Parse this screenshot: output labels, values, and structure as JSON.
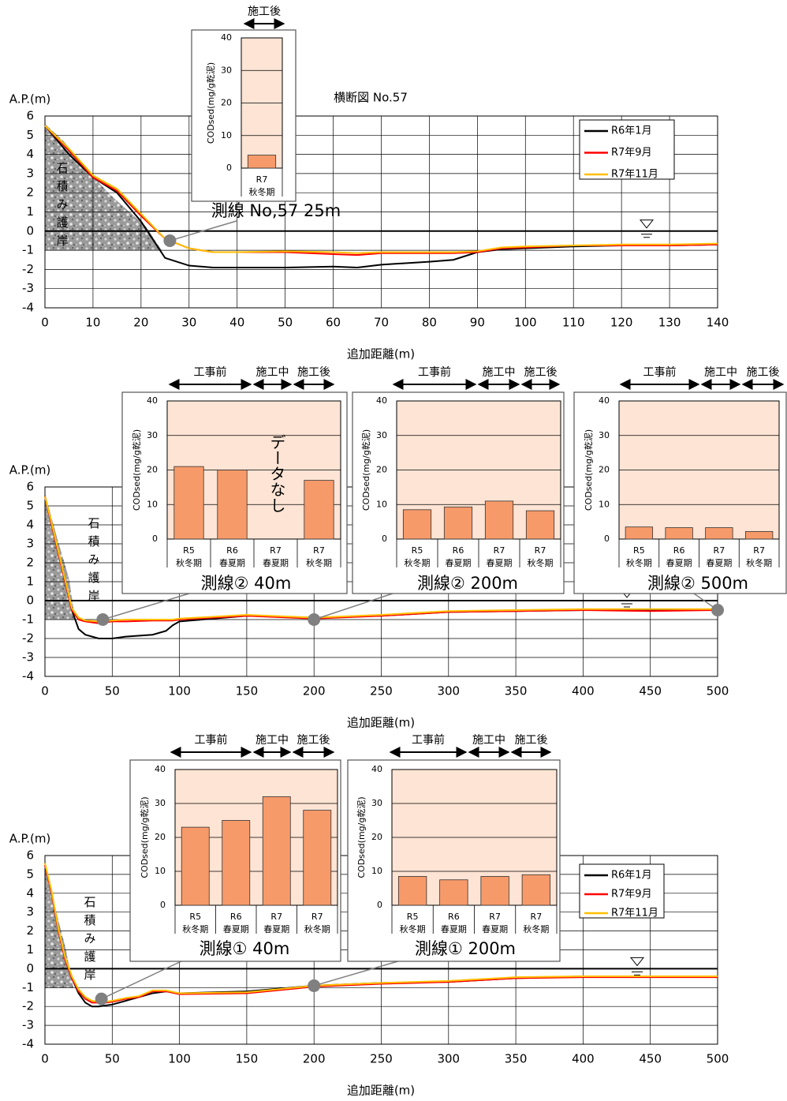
{
  "chart_data": [
    {
      "type": "line",
      "title": "横断図 No.57",
      "y_label": "A.P.(m)",
      "x_label": "追加距離(m)",
      "annotation": "石積み護岸",
      "x": [
        0,
        5,
        10,
        15,
        20,
        25,
        30,
        35,
        40,
        50,
        60,
        65,
        70,
        80,
        85,
        90,
        95,
        100,
        110,
        120,
        130,
        140
      ],
      "series": [
        {
          "name": "R6年1月",
          "color": "#000000",
          "values": [
            5.5,
            4,
            2.8,
            2,
            0.5,
            -1.4,
            -1.8,
            -1.9,
            -1.9,
            -1.9,
            -1.85,
            -1.9,
            -1.75,
            -1.6,
            -1.5,
            -1.1,
            -0.95,
            -0.9,
            -0.8,
            -0.75,
            -0.75,
            -0.7
          ]
        },
        {
          "name": "R7年9月",
          "color": "#ff0000",
          "values": [
            5.5,
            4.2,
            2.8,
            2.1,
            0.8,
            -0.4,
            -0.9,
            -1.1,
            -1.1,
            -1.1,
            -1.2,
            -1.25,
            -1.15,
            -1.15,
            -1.15,
            -1.1,
            -0.9,
            -0.85,
            -0.75,
            -0.75,
            -0.75,
            -0.7
          ]
        },
        {
          "name": "R7年11月",
          "color": "#ffc000",
          "values": [
            5.5,
            4.3,
            2.9,
            2.2,
            0.9,
            -0.4,
            -0.9,
            -1.1,
            -1.1,
            -1.05,
            -1.1,
            -1.15,
            -1.1,
            -1.1,
            -1.1,
            -1.05,
            -0.85,
            -0.8,
            -0.75,
            -0.7,
            -0.7,
            -0.65
          ]
        }
      ],
      "xlim": [
        0,
        140
      ],
      "ylim": [
        -4,
        6
      ],
      "xticks": [
        0,
        10,
        20,
        30,
        40,
        50,
        60,
        70,
        80,
        90,
        100,
        110,
        120,
        130,
        140
      ],
      "yticks": [
        -4,
        -3,
        -2,
        -1,
        0,
        1,
        2,
        3,
        4,
        5,
        6
      ],
      "grid": true,
      "legend": "upper right",
      "water_level": 0,
      "stations": [
        {
          "x": 26,
          "y": -0.5
        }
      ]
    },
    {
      "type": "line",
      "y_label": "A.P.(m)",
      "x_label": "追加距離(m)",
      "annotation": "石積み護岸",
      "x": [
        0,
        5,
        10,
        15,
        20,
        25,
        30,
        40,
        50,
        60,
        80,
        90,
        95,
        100,
        150,
        200,
        250,
        300,
        350,
        400,
        450,
        500
      ],
      "series": [
        {
          "name": "R6年1月",
          "color": "#000000",
          "values": [
            5.5,
            4,
            2.5,
            1,
            -0.5,
            -1.5,
            -1.8,
            -2,
            -2,
            -1.9,
            -1.8,
            -1.6,
            -1.3,
            -1.1,
            -0.8,
            -0.9,
            -0.8,
            -0.6,
            -0.55,
            -0.5,
            -0.5,
            -0.5
          ]
        },
        {
          "name": "R7年9月",
          "color": "#ff0000",
          "values": [
            5.5,
            4,
            2.5,
            1,
            -0.5,
            -1,
            -1.1,
            -1.2,
            -1.1,
            -1.1,
            -1.05,
            -1.05,
            -1.05,
            -1,
            -0.8,
            -0.95,
            -0.8,
            -0.6,
            -0.55,
            -0.5,
            -0.55,
            -0.5
          ]
        },
        {
          "name": "R7年11月",
          "color": "#ffc000",
          "values": [
            5.5,
            4.1,
            2.6,
            1.1,
            -0.4,
            -0.9,
            -1.05,
            -1.1,
            -1.05,
            -1,
            -1,
            -1,
            -1,
            -0.95,
            -0.75,
            -0.9,
            -0.75,
            -0.55,
            -0.5,
            -0.45,
            -0.45,
            -0.45
          ]
        }
      ],
      "xlim": [
        0,
        500
      ],
      "ylim": [
        -4,
        6
      ],
      "xticks": [
        0,
        50,
        100,
        150,
        200,
        250,
        300,
        350,
        400,
        450,
        500
      ],
      "yticks": [
        -4,
        -3,
        -2,
        -1,
        0,
        1,
        2,
        3,
        4,
        5,
        6
      ],
      "grid": true,
      "water_level": 0,
      "stations": [
        {
          "x": 43,
          "y": -1
        },
        {
          "x": 200,
          "y": -1
        },
        {
          "x": 500,
          "y": -0.5
        }
      ]
    },
    {
      "type": "line",
      "y_label": "A.P.(m)",
      "x_label": "追加距離(m)",
      "annotation": "石積み護岸",
      "x": [
        0,
        5,
        10,
        15,
        20,
        25,
        30,
        35,
        40,
        45,
        50,
        60,
        70,
        80,
        90,
        100,
        150,
        200,
        250,
        300,
        350,
        400,
        450,
        500
      ],
      "series": [
        {
          "name": "R6年1月",
          "color": "#000000",
          "values": [
            5.5,
            4,
            2,
            0.5,
            -0.5,
            -1.3,
            -1.8,
            -2,
            -2,
            -1.95,
            -1.9,
            -1.7,
            -1.5,
            -1.3,
            -1.2,
            -1.3,
            -1.2,
            -0.9,
            -0.75,
            -0.7,
            -0.5,
            -0.4,
            -0.4,
            -0.4
          ]
        },
        {
          "name": "R7年9月",
          "color": "#ff0000",
          "values": [
            5.5,
            4,
            2,
            0.5,
            -0.5,
            -1.2,
            -1.6,
            -1.8,
            -1.8,
            -1.8,
            -1.75,
            -1.6,
            -1.5,
            -1.2,
            -1.2,
            -1.35,
            -1.3,
            -0.95,
            -0.8,
            -0.7,
            -0.5,
            -0.45,
            -0.45,
            -0.45
          ]
        },
        {
          "name": "R7年11月",
          "color": "#ffc000",
          "values": [
            5.6,
            4.1,
            2.1,
            0.6,
            -0.4,
            -1.1,
            -1.5,
            -1.7,
            -1.75,
            -1.75,
            -1.7,
            -1.55,
            -1.45,
            -1.15,
            -1.15,
            -1.3,
            -1.25,
            -0.9,
            -0.75,
            -0.65,
            -0.45,
            -0.4,
            -0.4,
            -0.4
          ]
        }
      ],
      "xlim": [
        0,
        500
      ],
      "ylim": [
        -4,
        6
      ],
      "xticks": [
        0,
        50,
        100,
        150,
        200,
        250,
        300,
        350,
        400,
        450,
        500
      ],
      "yticks": [
        -4,
        -3,
        -2,
        -1,
        0,
        1,
        2,
        3,
        4,
        5,
        6
      ],
      "grid": true,
      "legend": "upper right",
      "water_level": 0,
      "stations": [
        {
          "x": 42,
          "y": -1.6
        },
        {
          "x": 200,
          "y": -0.9
        }
      ]
    },
    {
      "type": "bar",
      "y_label": "CODsed(mg/g乾泥)",
      "caption": "測線 No,57 25m",
      "phases": [
        "施工後"
      ],
      "categories": [
        [
          "R7",
          "秋冬期"
        ]
      ],
      "values": [
        4
      ],
      "color": "#f79a6a",
      "ylim": [
        0,
        40
      ],
      "yticks": [
        0,
        10,
        20,
        30,
        40
      ],
      "grid": true
    },
    {
      "type": "bar",
      "y_label": "CODsed(mg/g乾泥)",
      "caption": "測線② 40m",
      "phases": [
        "工事前",
        "施工中",
        "施工後"
      ],
      "annotation": "データなし",
      "categories": [
        [
          "R5",
          "秋冬期"
        ],
        [
          "R6",
          "春夏期"
        ],
        [
          "R7",
          "春夏期"
        ],
        [
          "R7",
          "秋冬期"
        ]
      ],
      "values": [
        21,
        20,
        null,
        17
      ],
      "color": "#f79a6a",
      "ylim": [
        0,
        40
      ],
      "yticks": [
        0,
        10,
        20,
        30,
        40
      ],
      "grid": true
    },
    {
      "type": "bar",
      "y_label": "CODsed(mg/g乾泥)",
      "caption": "測線② 200m",
      "phases": [
        "工事前",
        "施工中",
        "施工後"
      ],
      "categories": [
        [
          "R5",
          "秋冬期"
        ],
        [
          "R6",
          "春夏期"
        ],
        [
          "R7",
          "春夏期"
        ],
        [
          "R7",
          "秋冬期"
        ]
      ],
      "values": [
        8.5,
        9.3,
        11,
        8.2
      ],
      "color": "#f79a6a",
      "ylim": [
        0,
        40
      ],
      "yticks": [
        0,
        10,
        20,
        30,
        40
      ],
      "grid": true
    },
    {
      "type": "bar",
      "y_label": "CODsed(mg/g乾泥)",
      "caption": "測線② 500m",
      "phases": [
        "工事前",
        "施工中",
        "施工後"
      ],
      "categories": [
        [
          "R5",
          "秋冬期"
        ],
        [
          "R6",
          "春夏期"
        ],
        [
          "R7",
          "春夏期"
        ],
        [
          "R7",
          "秋冬期"
        ]
      ],
      "values": [
        3.5,
        3.3,
        3.3,
        2.2
      ],
      "color": "#f79a6a",
      "ylim": [
        0,
        40
      ],
      "yticks": [
        0,
        10,
        20,
        30,
        40
      ],
      "grid": true
    },
    {
      "type": "bar",
      "y_label": "CODsed(mg/g乾泥)",
      "caption": "測線① 40m",
      "phases": [
        "工事前",
        "施工中",
        "施工後"
      ],
      "categories": [
        [
          "R5",
          "秋冬期"
        ],
        [
          "R6",
          "春夏期"
        ],
        [
          "R7",
          "春夏期"
        ],
        [
          "R7",
          "秋冬期"
        ]
      ],
      "values": [
        23,
        25,
        32,
        28
      ],
      "color": "#f79a6a",
      "ylim": [
        0,
        40
      ],
      "yticks": [
        0,
        10,
        20,
        30,
        40
      ],
      "grid": true
    },
    {
      "type": "bar",
      "y_label": "CODsed(mg/g乾泥)",
      "caption": "測線① 200m",
      "phases": [
        "工事前",
        "施工中",
        "施工後"
      ],
      "categories": [
        [
          "R5",
          "秋冬期"
        ],
        [
          "R6",
          "春夏期"
        ],
        [
          "R7",
          "春夏期"
        ],
        [
          "R7",
          "秋冬期"
        ]
      ],
      "values": [
        8.5,
        7.5,
        8.5,
        9
      ],
      "color": "#f79a6a",
      "ylim": [
        0,
        40
      ],
      "yticks": [
        0,
        10,
        20,
        30,
        40
      ],
      "grid": true
    }
  ]
}
